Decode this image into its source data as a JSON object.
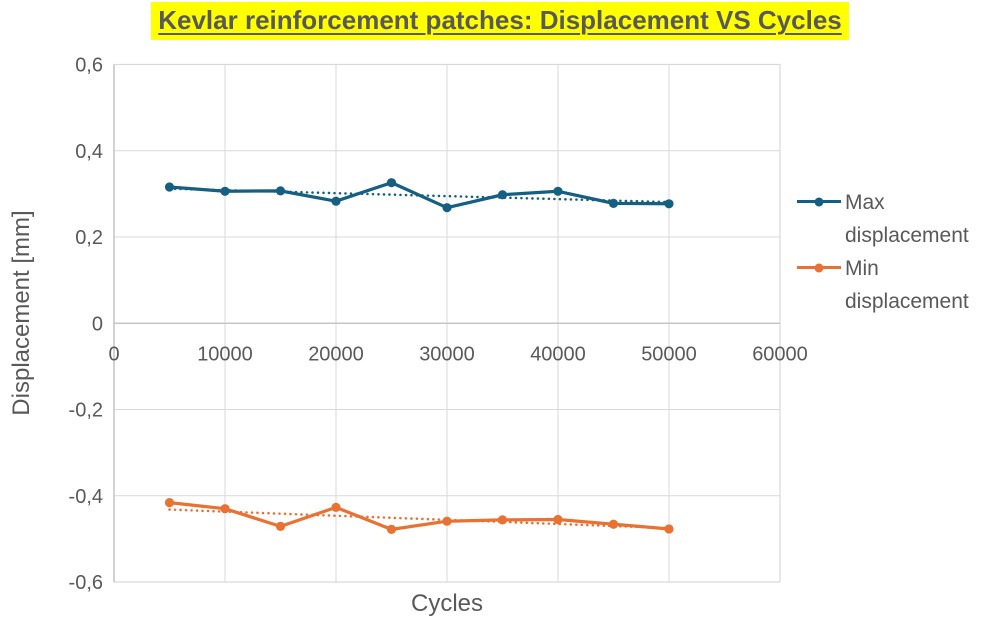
{
  "title": "Kevlar reinforcement patches: Displacement VS Cycles",
  "axes": {
    "x_title": "Cycles",
    "y_title": "Displacement [mm]",
    "x_ticks": [
      "0",
      "10000",
      "20000",
      "30000",
      "40000",
      "50000",
      "60000"
    ],
    "y_ticks": [
      "0,6",
      "0,4",
      "0,2",
      "0",
      "-0,2",
      "-0,4",
      "-0,6"
    ],
    "decimal_separator": ","
  },
  "legend": [
    {
      "label": "Max displacement",
      "color": "#156082"
    },
    {
      "label": "Min displacement",
      "color": "#E97132"
    }
  ],
  "colors": {
    "accent_blue": "#156082",
    "accent_orange": "#E97132",
    "text": "#595959",
    "gridline": "#D9D9D9",
    "axis_line": "#BFBFBF",
    "title_highlight": "#FFFF00"
  },
  "chart_data": {
    "type": "line",
    "title": "Kevlar reinforcement patches: Displacement VS Cycles",
    "xlabel": "Cycles",
    "ylabel": "Displacement [mm]",
    "xlim": [
      0,
      60000
    ],
    "ylim": [
      -0.6,
      0.6
    ],
    "x_tick_step": 10000,
    "y_tick_step": 0.2,
    "grid": true,
    "legend_position": "right",
    "x": [
      5000,
      10000,
      15000,
      20000,
      25000,
      30000,
      35000,
      40000,
      45000,
      50000
    ],
    "series": [
      {
        "name": "Max displacement",
        "color": "#156082",
        "marker": "circle",
        "values": [
          0.316,
          0.306,
          0.307,
          0.283,
          0.326,
          0.268,
          0.298,
          0.306,
          0.278,
          0.277
        ],
        "trendline": {
          "type": "linear",
          "style": "dotted",
          "x_start": 5000,
          "x_end": 50000,
          "y_start": 0.312,
          "y_end": 0.281
        }
      },
      {
        "name": "Min displacement",
        "color": "#E97132",
        "marker": "circle",
        "values": [
          -0.416,
          -0.43,
          -0.471,
          -0.427,
          -0.478,
          -0.459,
          -0.456,
          -0.455,
          -0.466,
          -0.477
        ],
        "trendline": {
          "type": "linear",
          "style": "dotted",
          "x_start": 5000,
          "x_end": 50000,
          "y_start": -0.432,
          "y_end": -0.475
        }
      }
    ]
  }
}
